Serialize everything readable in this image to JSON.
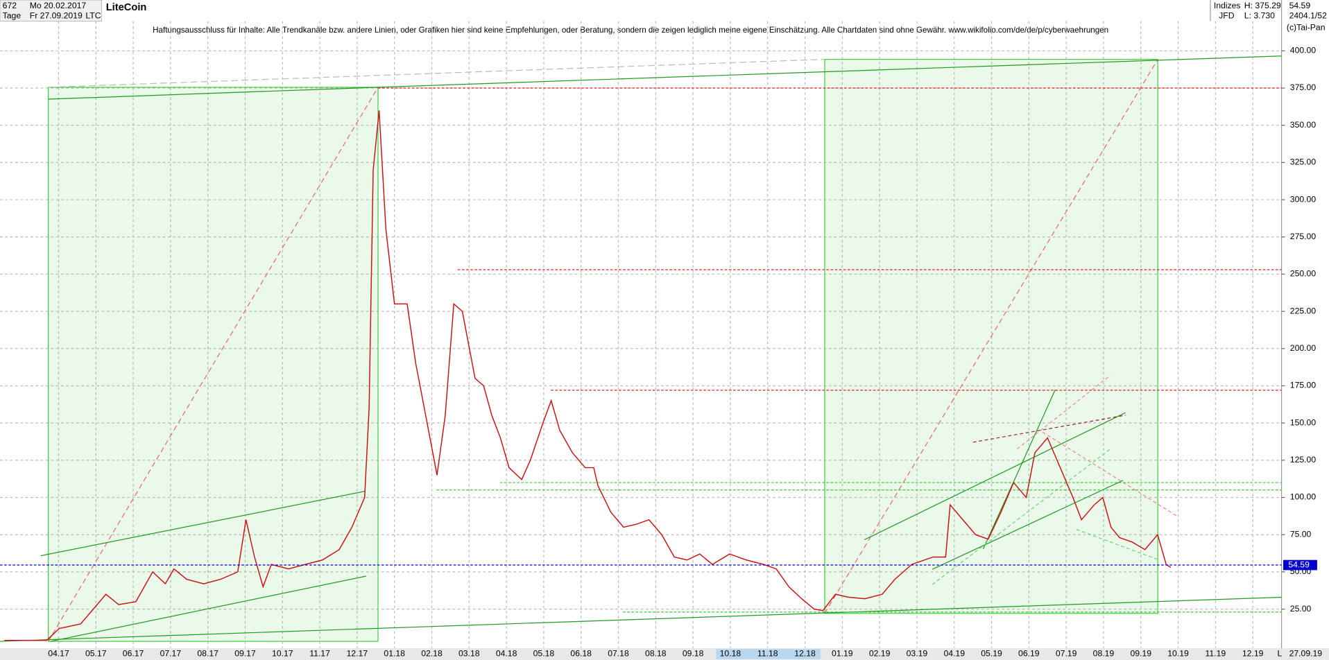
{
  "header": {
    "count": "672",
    "start_date": "Mo 20.02.2017",
    "period": "Tage",
    "end_date": "Fr 27.09.2019",
    "symbol_name": "LiteCoin",
    "symbol": "LTC",
    "group": "Indizes",
    "broker": "JFD",
    "high": "H: 375.29",
    "low": "L: 3.730",
    "last": "54.59",
    "info": "2404.1/52",
    "copyright": "(c)Tai-Pan"
  },
  "chart_data": {
    "type": "line",
    "title": "Haftungsausschluss für Inhalte: Alle Trendkanäle bzw. andere Linien, oder Grafiken hier sind keine Empfehlungen, oder Beratung, sondern die zeigen lediglich meine eigene Einschätzung. Alle Chartdaten sind ohne Gewähr.  www.wikifolio.com/de/de/p/cyberwaehrungen",
    "xlim": [
      0.43,
      34.77
    ],
    "ylim": [
      -1.2,
      419.9
    ],
    "xticks": [
      {
        "value": 2,
        "label": "04.17"
      },
      {
        "value": 3,
        "label": "05.17"
      },
      {
        "value": 4,
        "label": "06.17"
      },
      {
        "value": 5,
        "label": "07.17"
      },
      {
        "value": 6,
        "label": "08.17"
      },
      {
        "value": 7,
        "label": "09.17"
      },
      {
        "value": 8,
        "label": "10.17"
      },
      {
        "value": 9,
        "label": "11.17"
      },
      {
        "value": 10,
        "label": "12.17"
      },
      {
        "value": 11,
        "label": "01.18"
      },
      {
        "value": 12,
        "label": "02.18"
      },
      {
        "value": 13,
        "label": "03.18"
      },
      {
        "value": 14,
        "label": "04.18"
      },
      {
        "value": 15,
        "label": "05.18"
      },
      {
        "value": 16,
        "label": "06.18"
      },
      {
        "value": 17,
        "label": "07.18"
      },
      {
        "value": 18,
        "label": "08.18"
      },
      {
        "value": 19,
        "label": "09.18"
      },
      {
        "value": 20,
        "label": "10.18"
      },
      {
        "value": 21,
        "label": "11.18"
      },
      {
        "value": 22,
        "label": "12.18"
      },
      {
        "value": 23,
        "label": "01.19"
      },
      {
        "value": 24,
        "label": "02.19"
      },
      {
        "value": 25,
        "label": "03.19"
      },
      {
        "value": 26,
        "label": "04.19"
      },
      {
        "value": 27,
        "label": "05.19"
      },
      {
        "value": 28,
        "label": "06.19"
      },
      {
        "value": 29,
        "label": "07.19"
      },
      {
        "value": 30,
        "label": "08.19"
      },
      {
        "value": 31,
        "label": "09.19"
      },
      {
        "value": 32,
        "label": "10.19"
      },
      {
        "value": 33,
        "label": "11.19"
      },
      {
        "value": 34,
        "label": "12.19"
      }
    ],
    "yticks": [
      {
        "value": 25,
        "label": "25.00"
      },
      {
        "value": 50,
        "label": "50.00"
      },
      {
        "value": 75,
        "label": "75.00"
      },
      {
        "value": 100,
        "label": "100.00"
      },
      {
        "value": 125,
        "label": "125.00"
      },
      {
        "value": 150,
        "label": "150.00"
      },
      {
        "value": 175,
        "label": "175.00"
      },
      {
        "value": 200,
        "label": "200.00"
      },
      {
        "value": 225,
        "label": "225.00"
      },
      {
        "value": 250,
        "label": "250.00"
      },
      {
        "value": 275,
        "label": "275.00"
      },
      {
        "value": 300,
        "label": "300.00"
      },
      {
        "value": 325,
        "label": "325.00"
      },
      {
        "value": 350,
        "label": "350.00"
      },
      {
        "value": 375,
        "label": "375.00"
      },
      {
        "value": 400,
        "label": "400.00"
      }
    ],
    "grid": true,
    "end_label": "27.09.19",
    "scale_label": "L",
    "last_value": 54.59,
    "last_label": "54.59",
    "last_color": "#0000cc",
    "levels": [
      {
        "value": 375,
        "color": "#dd2222"
      },
      {
        "value": 253,
        "color": "#dd2222"
      },
      {
        "value": 172,
        "color": "#dd2222"
      },
      {
        "value": 110,
        "color": "#33cc33"
      },
      {
        "value": 105,
        "color": "#33cc33"
      },
      {
        "value": 23,
        "color": "#33cc33"
      }
    ],
    "series": [
      {
        "name": "LTC",
        "color": "#cc1111",
        "x": [
          0.55,
          1.68,
          2.02,
          2.59,
          2.93,
          3.27,
          3.61,
          4.07,
          4.52,
          4.86,
          5.09,
          5.43,
          5.89,
          6.34,
          6.8,
          7.02,
          7.25,
          7.48,
          7.7,
          8.16,
          8.61,
          9.07,
          9.52,
          9.86,
          10.2,
          10.32,
          10.43,
          10.59,
          10.77,
          11.0,
          11.34,
          11.57,
          11.8,
          12.14,
          12.36,
          12.59,
          12.82,
          13.16,
          13.39,
          13.61,
          13.84,
          14.07,
          14.41,
          14.64,
          14.98,
          15.2,
          15.43,
          15.77,
          16.11,
          16.34,
          16.45,
          16.8,
          17.14,
          17.48,
          17.82,
          18.16,
          18.5,
          18.84,
          19.18,
          19.52,
          19.98,
          20.43,
          20.89,
          21.23,
          21.57,
          21.91,
          22.25,
          22.48,
          22.82,
          23.16,
          23.61,
          24.07,
          24.41,
          24.86,
          25.43,
          25.77,
          25.89,
          26.23,
          26.57,
          26.91,
          27.25,
          27.59,
          27.93,
          28.16,
          28.5,
          28.84,
          29.18,
          29.41,
          29.75,
          29.98,
          30.2,
          30.43,
          30.77,
          31.11,
          31.45,
          31.68,
          31.8
        ],
        "values": [
          4,
          4,
          12,
          15,
          25,
          35,
          28,
          30,
          50,
          42,
          52,
          45,
          42,
          45,
          50,
          85,
          60,
          40,
          55,
          52,
          55,
          58,
          65,
          80,
          100,
          160,
          320,
          360,
          280,
          230,
          230,
          190,
          160,
          115,
          155,
          230,
          225,
          180,
          175,
          155,
          140,
          120,
          112,
          125,
          150,
          165,
          145,
          130,
          120,
          120,
          108,
          90,
          80,
          82,
          85,
          75,
          60,
          58,
          62,
          55,
          62,
          58,
          55,
          52,
          40,
          32,
          25,
          24,
          35,
          33,
          32,
          35,
          45,
          55,
          60,
          60,
          95,
          85,
          75,
          72,
          90,
          110,
          100,
          130,
          140,
          120,
          100,
          85,
          95,
          100,
          80,
          73,
          70,
          65,
          75,
          55,
          53
        ]
      }
    ]
  }
}
